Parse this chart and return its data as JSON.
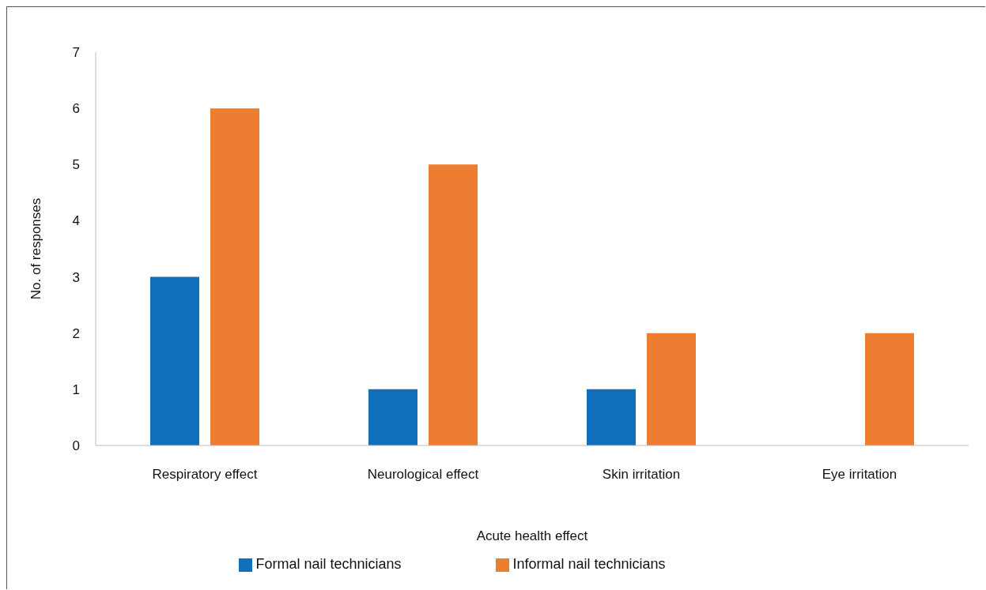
{
  "chart_data": {
    "type": "bar",
    "xlabel": "Acute health effect",
    "ylabel": "No. of responses",
    "categories": [
      "Respiratory effect",
      "Neurological effect",
      "Skin irritation",
      "Eye irritation"
    ],
    "series": [
      {
        "name": "Formal nail technicians",
        "color": "#1170bd",
        "values": [
          3,
          1,
          1,
          0
        ]
      },
      {
        "name": "Informal nail technicians",
        "color": "#ed7d31",
        "values": [
          6,
          5,
          2,
          2
        ]
      }
    ],
    "ylim": [
      0,
      7
    ],
    "yticks": [
      0,
      1,
      2,
      3,
      4,
      5,
      6,
      7
    ],
    "grid": false,
    "legend": "bottom"
  }
}
